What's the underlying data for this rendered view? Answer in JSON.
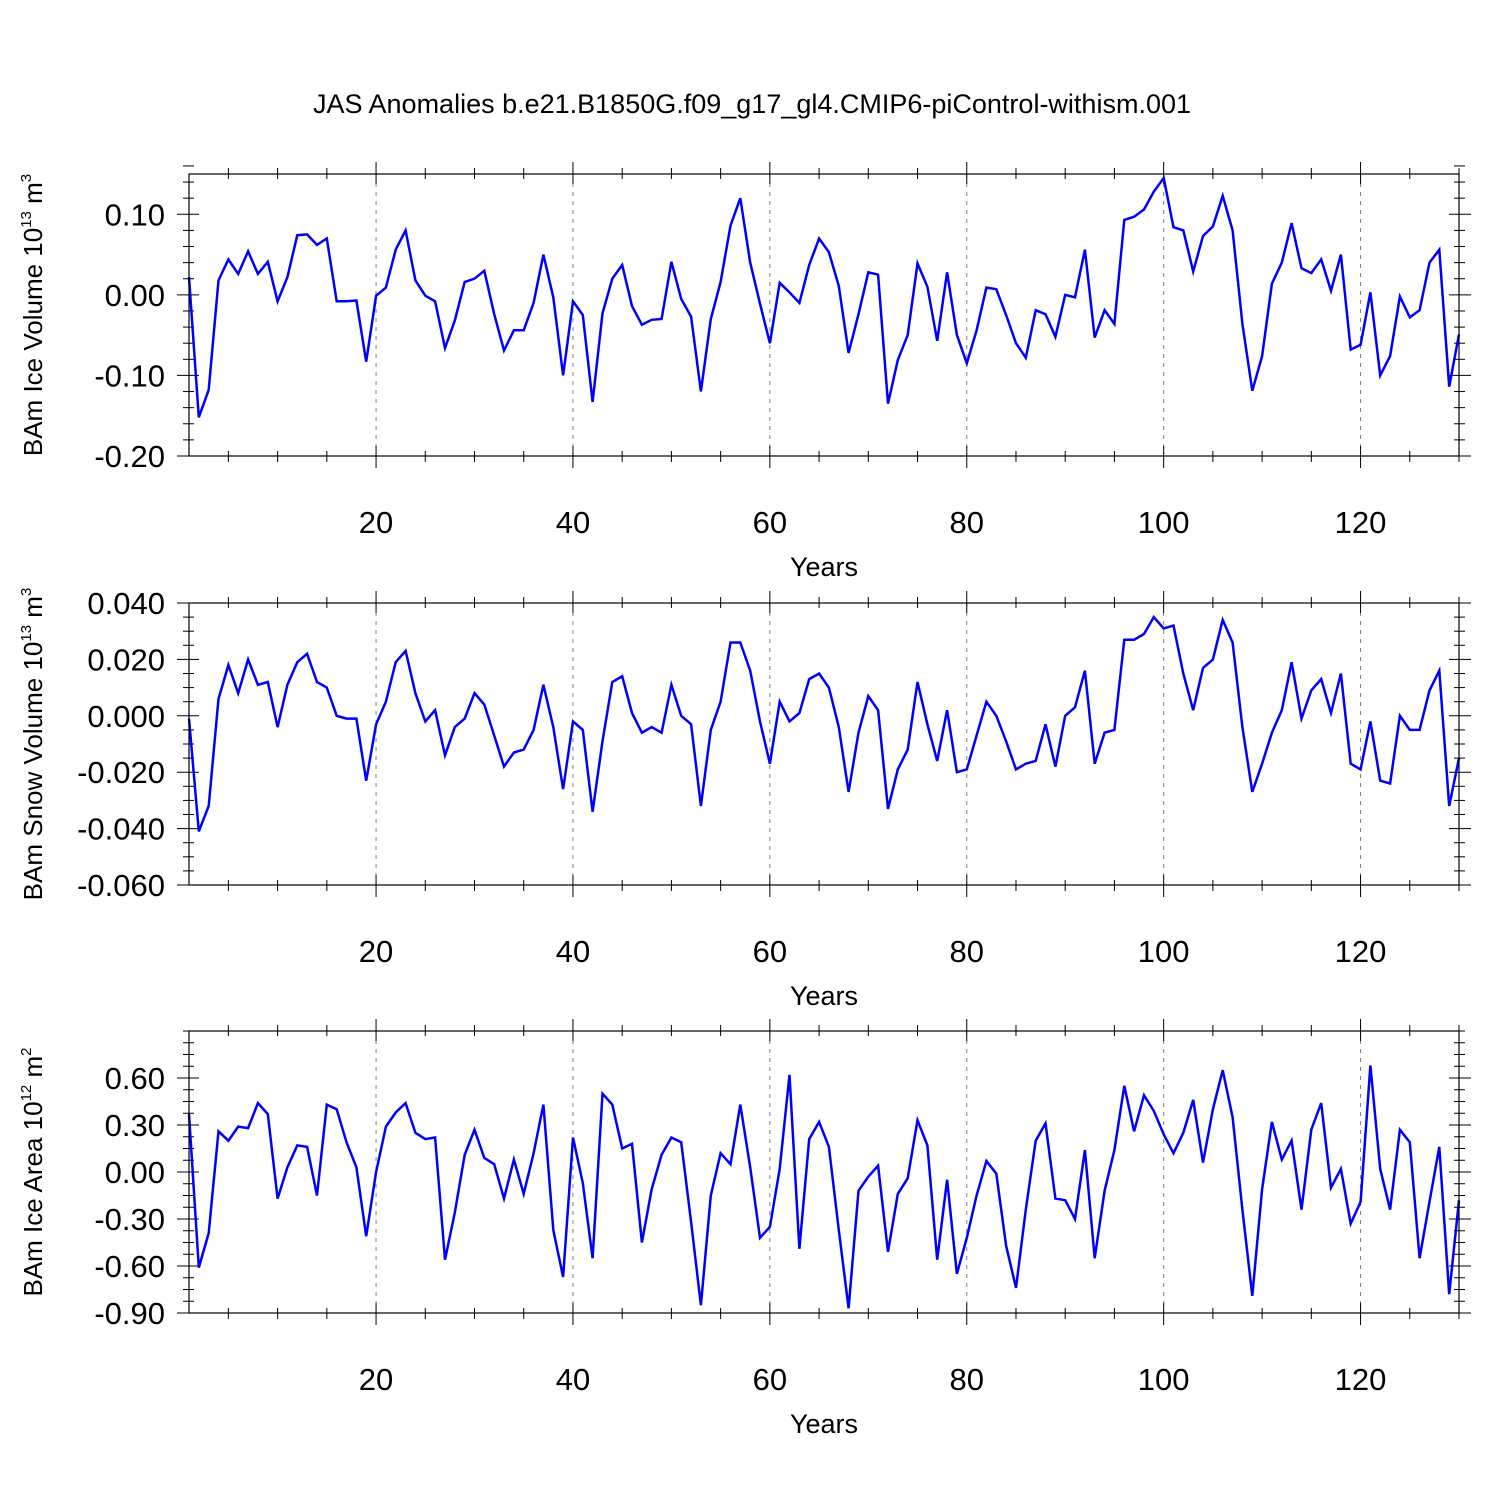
{
  "title": "JAS Anomalies b.e21.B1850G.f09_g17_gl4.CMIP6-piControl-withism.001",
  "colors": {
    "line": "#0000ff",
    "axis": "#000000",
    "grid": "#808080",
    "background": "#ffffff"
  },
  "chart_data": [
    {
      "type": "line",
      "ylabel": {
        "prefix": "BAm Ice Volume 10",
        "exponent": "13",
        "unit": " m",
        "unit_exponent": "3"
      },
      "xlabel": "Years",
      "xlim": [
        1,
        130
      ],
      "ylim": [
        -0.2,
        0.15
      ],
      "xticks": [
        20,
        40,
        60,
        80,
        100,
        120
      ],
      "xtick_labels": [
        "20",
        "40",
        "60",
        "80",
        "100",
        "120"
      ],
      "yticks": [
        -0.2,
        -0.1,
        0.0,
        0.1
      ],
      "ytick_labels": [
        "-0.20",
        "-0.10",
        "0.00",
        "0.10"
      ],
      "y_minor_step": 0.02,
      "x_minor_step": 5,
      "grid": "vertical dashed at major x ticks",
      "series": [
        {
          "name": "BAm Ice Volume",
          "values": [
            0.022,
            -0.152,
            -0.118,
            0.018,
            0.044,
            0.026,
            0.054,
            0.026,
            0.041,
            -0.008,
            0.022,
            0.074,
            0.075,
            0.062,
            0.07,
            -0.008,
            -0.008,
            -0.007,
            -0.083,
            -0.001,
            0.009,
            0.056,
            0.08,
            0.018,
            -0.001,
            -0.008,
            -0.066,
            -0.032,
            0.016,
            0.02,
            0.03,
            -0.024,
            -0.069,
            -0.044,
            -0.044,
            -0.01,
            0.05,
            -0.003,
            -0.1,
            -0.008,
            -0.025,
            -0.133,
            -0.023,
            0.02,
            0.037,
            -0.014,
            -0.037,
            -0.031,
            -0.03,
            0.041,
            -0.005,
            -0.027,
            -0.12,
            -0.03,
            0.016,
            0.086,
            0.12,
            0.04,
            -0.011,
            -0.06,
            0.015,
            0.003,
            -0.01,
            0.037,
            0.07,
            0.053,
            0.011,
            -0.072,
            -0.024,
            0.028,
            0.025,
            -0.135,
            -0.081,
            -0.05,
            0.039,
            0.01,
            -0.057,
            0.028,
            -0.05,
            -0.085,
            -0.044,
            0.009,
            0.007,
            -0.025,
            -0.06,
            -0.078,
            -0.019,
            -0.024,
            -0.052,
            0.0,
            -0.003,
            0.056,
            -0.053,
            -0.019,
            -0.036,
            0.093,
            0.097,
            0.106,
            0.128,
            0.145,
            0.084,
            0.08,
            0.029,
            0.073,
            0.085,
            0.123,
            0.08,
            -0.036,
            -0.119,
            -0.076,
            0.014,
            0.04,
            0.089,
            0.033,
            0.027,
            0.044,
            0.005,
            0.05,
            -0.068,
            -0.062,
            0.003,
            -0.1,
            -0.076,
            -0.002,
            -0.028,
            -0.019,
            0.04,
            0.056,
            -0.114,
            -0.049
          ]
        }
      ]
    },
    {
      "type": "line",
      "ylabel": {
        "prefix": "BAm Snow Volume 10",
        "exponent": "13",
        "unit": " m",
        "unit_exponent": "3"
      },
      "xlabel": "Years",
      "xlim": [
        1,
        130
      ],
      "ylim": [
        -0.06,
        0.04
      ],
      "xticks": [
        20,
        40,
        60,
        80,
        100,
        120
      ],
      "xtick_labels": [
        "20",
        "40",
        "60",
        "80",
        "100",
        "120"
      ],
      "yticks": [
        -0.06,
        -0.04,
        -0.02,
        0.0,
        0.02,
        0.04
      ],
      "ytick_labels": [
        "-0.060",
        "-0.040",
        "-0.020",
        "0.000",
        "0.020",
        "0.040"
      ],
      "y_minor_step": 0.005,
      "x_minor_step": 5,
      "grid": "vertical dashed at major x ticks",
      "series": [
        {
          "name": "BAm Snow Volume",
          "values": [
            -0.001,
            -0.041,
            -0.032,
            0.006,
            0.018,
            0.008,
            0.02,
            0.011,
            0.012,
            -0.004,
            0.011,
            0.019,
            0.022,
            0.012,
            0.01,
            0.0,
            -0.001,
            -0.001,
            -0.023,
            -0.003,
            0.005,
            0.019,
            0.023,
            0.008,
            -0.002,
            0.002,
            -0.014,
            -0.004,
            -0.001,
            0.008,
            0.004,
            -0.007,
            -0.018,
            -0.013,
            -0.012,
            -0.005,
            0.011,
            -0.004,
            -0.026,
            -0.002,
            -0.005,
            -0.034,
            -0.009,
            0.012,
            0.014,
            0.001,
            -0.006,
            -0.004,
            -0.006,
            0.011,
            0.0,
            -0.003,
            -0.032,
            -0.005,
            0.005,
            0.026,
            0.026,
            0.016,
            -0.002,
            -0.017,
            0.005,
            -0.002,
            0.001,
            0.013,
            0.015,
            0.01,
            -0.004,
            -0.027,
            -0.006,
            0.007,
            0.002,
            -0.033,
            -0.019,
            -0.012,
            0.012,
            -0.003,
            -0.016,
            0.002,
            -0.02,
            -0.019,
            -0.007,
            0.005,
            0.0,
            -0.009,
            -0.019,
            -0.017,
            -0.016,
            -0.003,
            -0.018,
            0.0,
            0.003,
            0.016,
            -0.017,
            -0.006,
            -0.005,
            0.027,
            0.027,
            0.029,
            0.035,
            0.031,
            0.032,
            0.015,
            0.002,
            0.017,
            0.02,
            0.034,
            0.026,
            -0.004,
            -0.027,
            -0.017,
            -0.006,
            0.002,
            0.019,
            -0.001,
            0.009,
            0.013,
            0.001,
            0.015,
            -0.017,
            -0.019,
            -0.002,
            -0.023,
            -0.024,
            0.0,
            -0.005,
            -0.005,
            0.009,
            0.016,
            -0.032,
            -0.015
          ]
        }
      ]
    },
    {
      "type": "line",
      "ylabel": {
        "prefix": "BAm Ice Area 10",
        "exponent": "12",
        "unit": " m",
        "unit_exponent": "2"
      },
      "xlabel": "Years",
      "xlim": [
        1,
        130
      ],
      "ylim": [
        -0.9,
        0.9
      ],
      "xticks": [
        20,
        40,
        60,
        80,
        100,
        120
      ],
      "xtick_labels": [
        "20",
        "40",
        "60",
        "80",
        "100",
        "120"
      ],
      "yticks": [
        -0.9,
        -0.6,
        -0.3,
        0.0,
        0.3,
        0.6
      ],
      "ytick_labels": [
        "-0.90",
        "-0.60",
        "-0.30",
        "0.00",
        "0.30",
        "0.60"
      ],
      "y_minor_step": 0.075,
      "x_minor_step": 5,
      "grid": "vertical dashed at major x ticks",
      "series": [
        {
          "name": "BAm Ice Area",
          "values": [
            0.37,
            -0.61,
            -0.39,
            0.26,
            0.2,
            0.29,
            0.28,
            0.44,
            0.37,
            -0.17,
            0.03,
            0.17,
            0.16,
            -0.15,
            0.43,
            0.4,
            0.19,
            0.03,
            -0.41,
            0.0,
            0.29,
            0.38,
            0.44,
            0.25,
            0.21,
            0.22,
            -0.56,
            -0.26,
            0.11,
            0.27,
            0.09,
            0.05,
            -0.17,
            0.08,
            -0.14,
            0.12,
            0.43,
            -0.37,
            -0.67,
            0.22,
            -0.07,
            -0.55,
            0.5,
            0.43,
            0.15,
            0.18,
            -0.45,
            -0.11,
            0.11,
            0.22,
            0.19,
            -0.32,
            -0.85,
            -0.15,
            0.12,
            0.05,
            0.43,
            0.03,
            -0.42,
            -0.35,
            0.02,
            0.62,
            -0.49,
            0.21,
            0.32,
            0.16,
            -0.37,
            -0.87,
            -0.12,
            -0.03,
            0.04,
            -0.51,
            -0.14,
            -0.04,
            0.33,
            0.17,
            -0.56,
            -0.05,
            -0.65,
            -0.42,
            -0.15,
            0.07,
            -0.01,
            -0.47,
            -0.74,
            -0.24,
            0.2,
            0.31,
            -0.17,
            -0.18,
            -0.3,
            0.14,
            -0.55,
            -0.12,
            0.14,
            0.55,
            0.26,
            0.49,
            0.39,
            0.24,
            0.12,
            0.25,
            0.46,
            0.06,
            0.4,
            0.65,
            0.35,
            -0.24,
            -0.79,
            -0.11,
            0.32,
            0.08,
            0.2,
            -0.24,
            0.27,
            0.44,
            -0.1,
            0.02,
            -0.33,
            -0.19,
            0.68,
            0.02,
            -0.24,
            0.27,
            0.19,
            -0.55,
            -0.19,
            0.16,
            -0.78,
            -0.18
          ]
        }
      ]
    }
  ]
}
